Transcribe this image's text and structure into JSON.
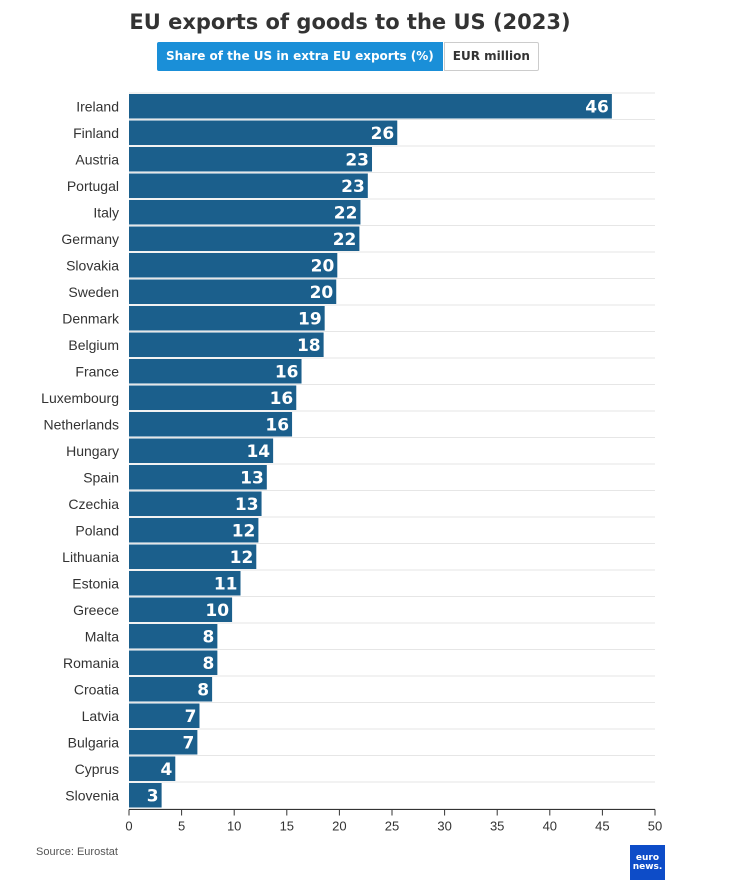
{
  "title": "EU exports of goods to the US (2023)",
  "toggle": {
    "active_label": "Share of the US in extra EU exports (%)",
    "inactive_label": "EUR million"
  },
  "source": "Source: Eurostat",
  "logo": {
    "line1": "euro",
    "line2": "news."
  },
  "colors": {
    "bar": "#1b5f8c",
    "accent": "#1a8fd8",
    "logo": "#0d4cc8"
  },
  "chart_data": {
    "type": "bar",
    "orientation": "horizontal",
    "title": "EU exports of goods to the US (2023)",
    "categories": [
      "Ireland",
      "Finland",
      "Austria",
      "Portugal",
      "Italy",
      "Germany",
      "Slovakia",
      "Sweden",
      "Denmark",
      "Belgium",
      "France",
      "Luxembourg",
      "Netherlands",
      "Hungary",
      "Spain",
      "Czechia",
      "Poland",
      "Lithuania",
      "Estonia",
      "Greece",
      "Malta",
      "Romania",
      "Croatia",
      "Latvia",
      "Bulgaria",
      "Cyprus",
      "Slovenia"
    ],
    "values": [
      45.9,
      25.5,
      23.1,
      22.7,
      22.0,
      21.9,
      19.8,
      19.7,
      18.6,
      18.5,
      16.4,
      15.9,
      15.5,
      13.7,
      13.1,
      12.6,
      12.3,
      12.1,
      10.6,
      9.8,
      8.4,
      8.4,
      7.9,
      6.7,
      6.5,
      4.4,
      3.1
    ],
    "labels": [
      "46",
      "26",
      "23",
      "23",
      "22",
      "22",
      "20",
      "20",
      "19",
      "18",
      "16",
      "16",
      "16",
      "14",
      "13",
      "13",
      "12",
      "12",
      "11",
      "10",
      "8",
      "8",
      "8",
      "7",
      "7",
      "4",
      "3"
    ],
    "xlim": [
      0,
      50
    ],
    "xticks": [
      0,
      5,
      10,
      15,
      20,
      25,
      30,
      35,
      40,
      45,
      50
    ],
    "grid": true
  }
}
